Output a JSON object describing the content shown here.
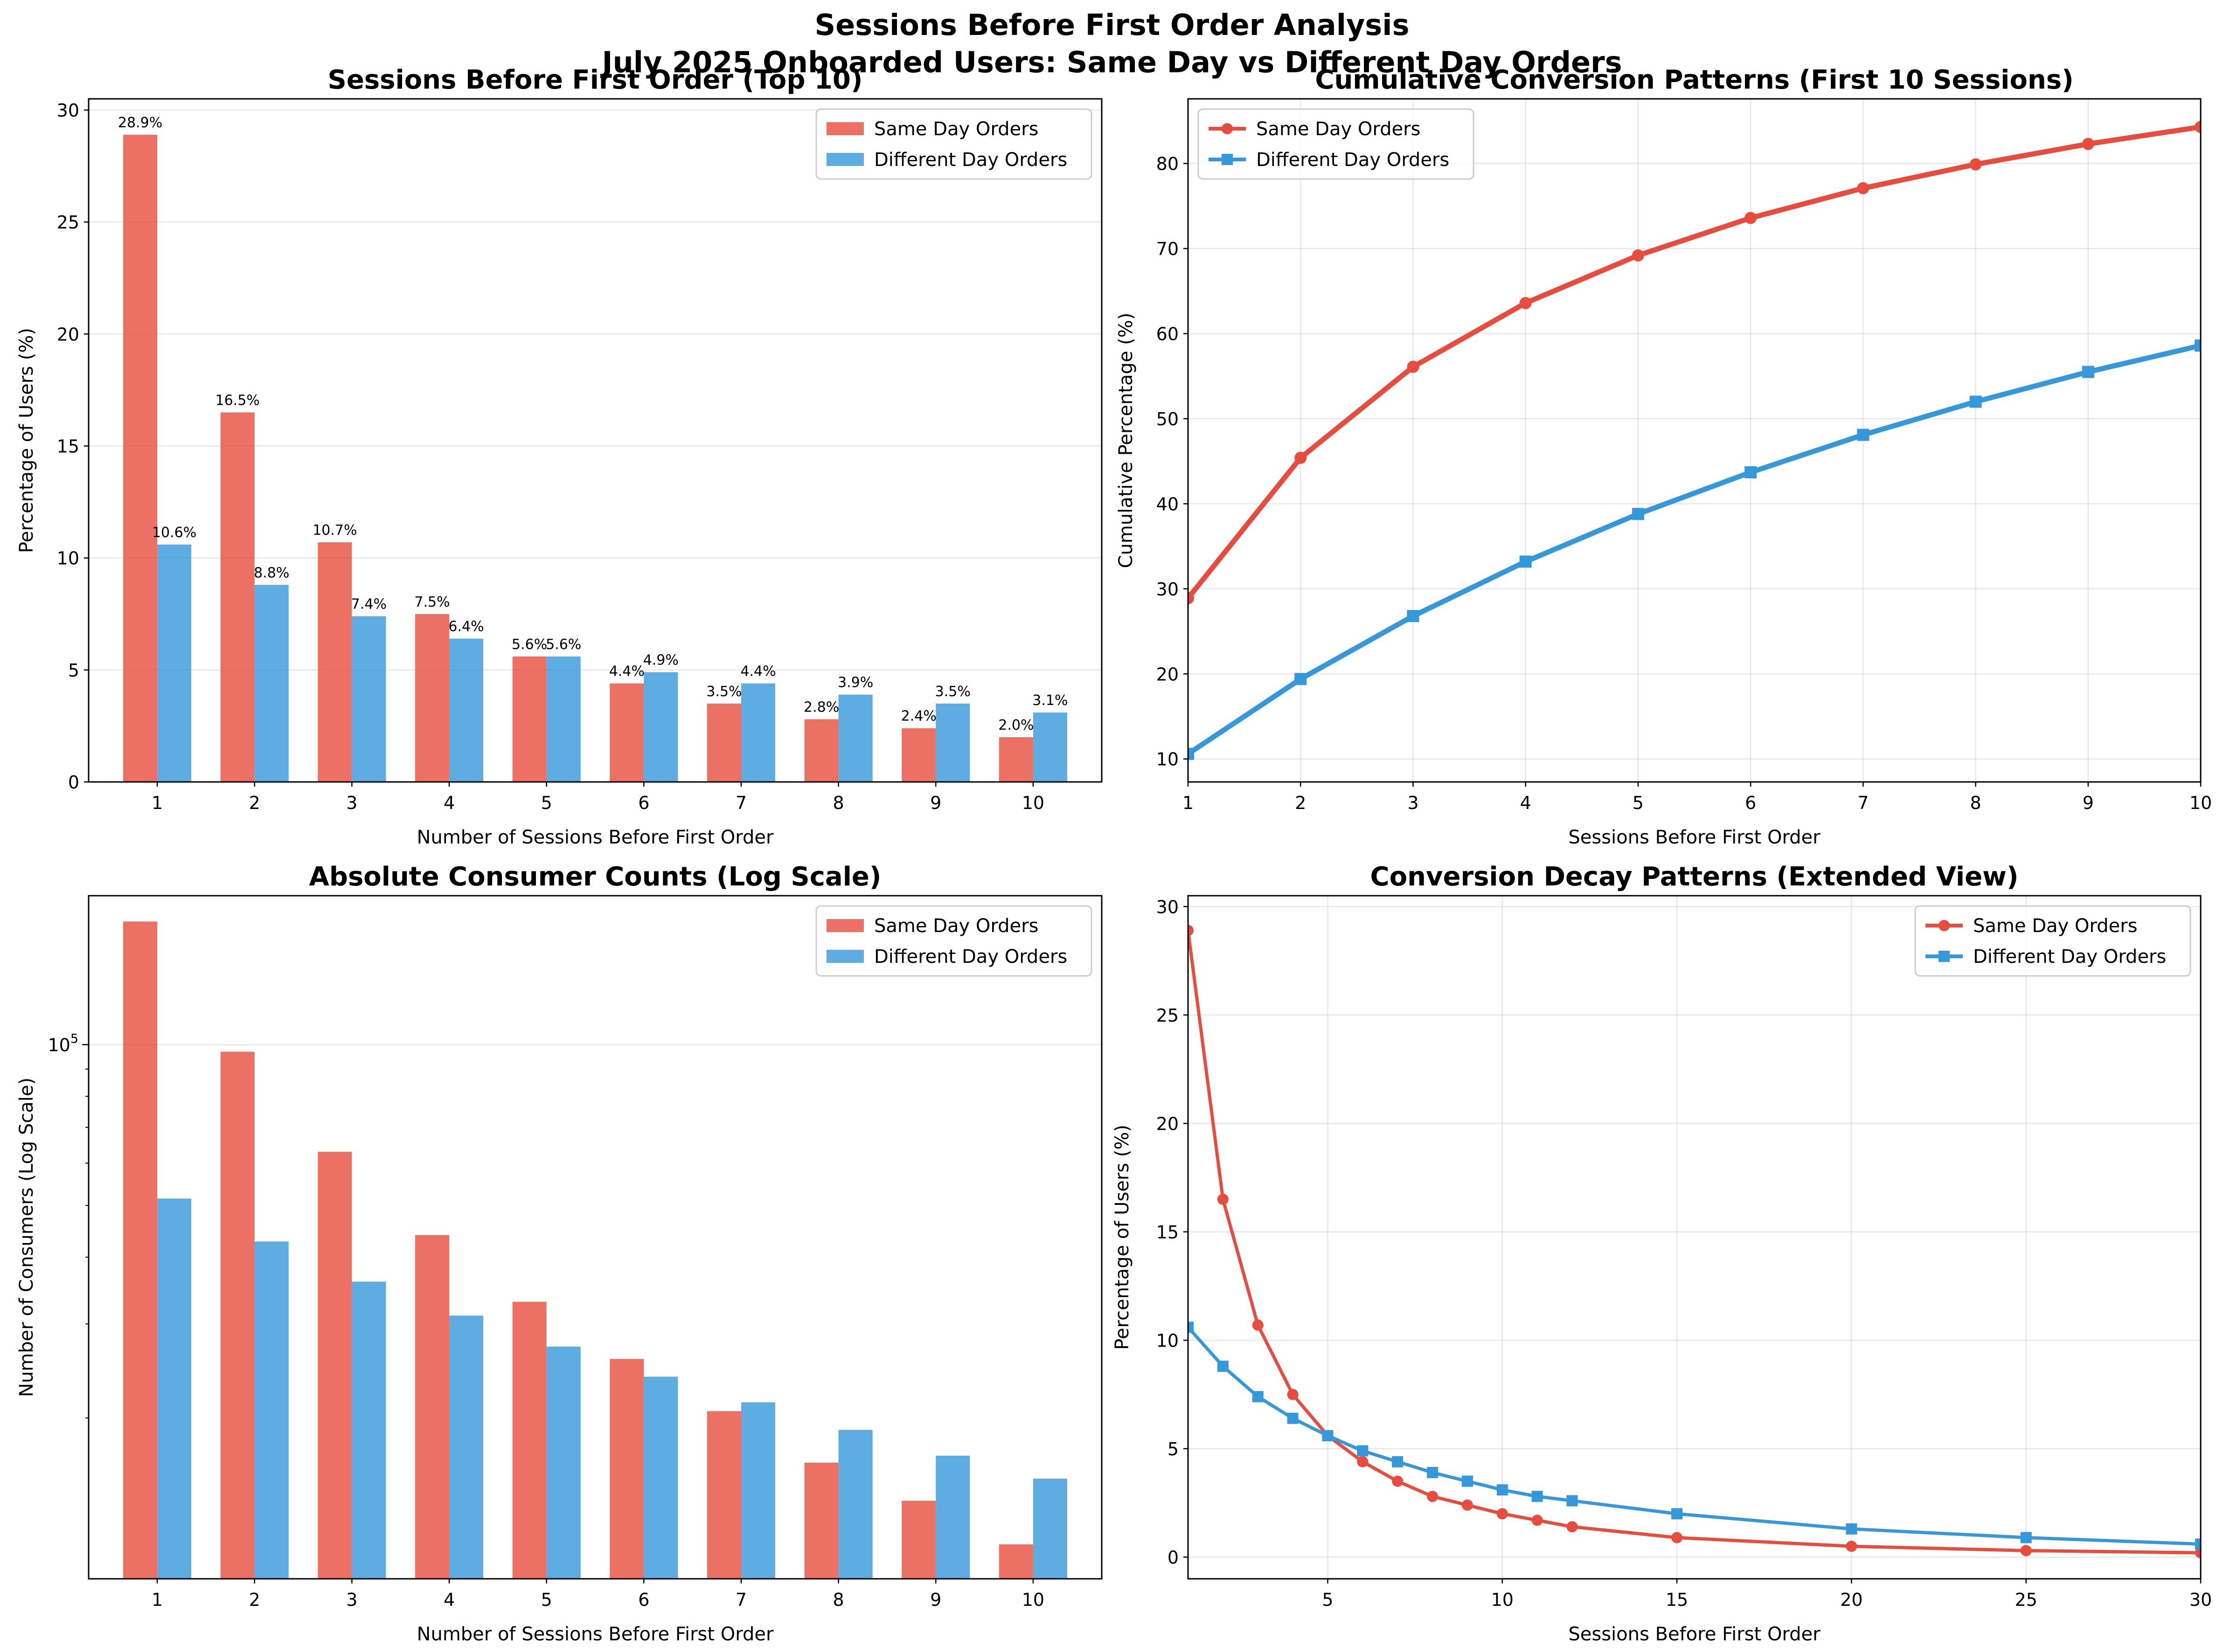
{
  "title_line1": "Sessions Before First Order Analysis",
  "title_line2": "July 2025 Onboarded Users: Same Day vs Different Day Orders",
  "colors": {
    "same_day": "#e74c3c",
    "different_day": "#3498db"
  },
  "chart_data": [
    {
      "type": "bar",
      "title": "Sessions Before First Order (Top 10)",
      "xlabel": "Number of Sessions Before First Order",
      "ylabel": "Percentage of Users (%)",
      "categories": [
        "1",
        "2",
        "3",
        "4",
        "5",
        "6",
        "7",
        "8",
        "9",
        "10"
      ],
      "ylim": [
        0,
        30.5
      ],
      "yticks": [
        0,
        5,
        10,
        15,
        20,
        25,
        30
      ],
      "grid": "y",
      "legend": "upper right",
      "series": [
        {
          "name": "Same Day Orders",
          "values": [
            28.9,
            16.5,
            10.7,
            7.5,
            5.6,
            4.4,
            3.5,
            2.8,
            2.4,
            2.0
          ],
          "labels": [
            "28.9%",
            "16.5%",
            "10.7%",
            "7.5%",
            "5.6%",
            "4.4%",
            "3.5%",
            "2.8%",
            "2.4%",
            "2.0%"
          ]
        },
        {
          "name": "Different Day Orders",
          "values": [
            10.6,
            8.8,
            7.4,
            6.4,
            5.6,
            4.9,
            4.4,
            3.9,
            3.5,
            3.1
          ],
          "labels": [
            "10.6%",
            "8.8%",
            "7.4%",
            "6.4%",
            "5.6%",
            "4.9%",
            "4.4%",
            "3.9%",
            "3.5%",
            "3.1%"
          ]
        }
      ]
    },
    {
      "type": "line",
      "title": "Cumulative Conversion Patterns (First 10 Sessions)",
      "xlabel": "Sessions Before First Order",
      "ylabel": "Cumulative Percentage (%)",
      "x": [
        1,
        2,
        3,
        4,
        5,
        6,
        7,
        8,
        9,
        10
      ],
      "xlim": [
        1,
        10
      ],
      "ylim": [
        7.3,
        87.6
      ],
      "xticks": [
        1,
        2,
        3,
        4,
        5,
        6,
        7,
        8,
        9,
        10
      ],
      "yticks": [
        10,
        20,
        30,
        40,
        50,
        60,
        70,
        80
      ],
      "grid": "both",
      "legend": "upper left",
      "series": [
        {
          "name": "Same Day Orders",
          "marker": "circle",
          "values": [
            28.9,
            45.4,
            56.1,
            63.6,
            69.2,
            73.6,
            77.1,
            79.9,
            82.3,
            84.3
          ]
        },
        {
          "name": "Different Day Orders",
          "marker": "square",
          "values": [
            10.6,
            19.4,
            26.8,
            33.2,
            38.8,
            43.7,
            48.1,
            52.0,
            55.5,
            58.6
          ]
        }
      ]
    },
    {
      "type": "bar",
      "title": "Absolute Consumer Counts (Log Scale)",
      "xlabel": "Number of Sessions Before First Order",
      "ylabel": "Number of Consumers (Log Scale)",
      "yscale": "log",
      "categories": [
        "1",
        "2",
        "3",
        "4",
        "5",
        "6",
        "7",
        "8",
        "9",
        "10"
      ],
      "ylim": [
        10000,
        190000
      ],
      "ytick_major": {
        "value": 100000,
        "base": "10",
        "exp": "5"
      },
      "yticks_minor": [
        20000,
        30000,
        40000,
        50000,
        60000,
        70000,
        80000,
        90000
      ],
      "grid": "y",
      "legend": "upper right",
      "series": [
        {
          "name": "Same Day Orders",
          "values": [
            170000,
            97000,
            63000,
            44000,
            33000,
            25800,
            20600,
            16500,
            14000,
            11600
          ]
        },
        {
          "name": "Different Day Orders",
          "values": [
            51500,
            42800,
            36000,
            31100,
            27200,
            23900,
            21400,
            19000,
            17000,
            15400
          ]
        }
      ]
    },
    {
      "type": "line",
      "title": "Conversion Decay Patterns (Extended View)",
      "xlabel": "Sessions Before First Order",
      "ylabel": "Percentage of Users (%)",
      "x": [
        1,
        2,
        3,
        4,
        5,
        6,
        7,
        8,
        9,
        10,
        11,
        12,
        15,
        20,
        25,
        30
      ],
      "xlim": [
        1,
        30
      ],
      "ylim": [
        -1.0,
        30.5
      ],
      "xticks": [
        5,
        10,
        15,
        20,
        25,
        30
      ],
      "yticks": [
        0,
        5,
        10,
        15,
        20,
        25,
        30
      ],
      "grid": "both",
      "legend": "upper right",
      "series": [
        {
          "name": "Same Day Orders",
          "marker": "circle",
          "values": [
            28.9,
            16.5,
            10.7,
            7.5,
            5.6,
            4.4,
            3.5,
            2.8,
            2.4,
            2.0,
            1.7,
            1.4,
            0.9,
            0.5,
            0.3,
            0.2
          ]
        },
        {
          "name": "Different Day Orders",
          "marker": "square",
          "values": [
            10.6,
            8.8,
            7.4,
            6.4,
            5.6,
            4.9,
            4.4,
            3.9,
            3.5,
            3.1,
            2.8,
            2.6,
            2.0,
            1.3,
            0.9,
            0.6
          ]
        }
      ]
    }
  ]
}
